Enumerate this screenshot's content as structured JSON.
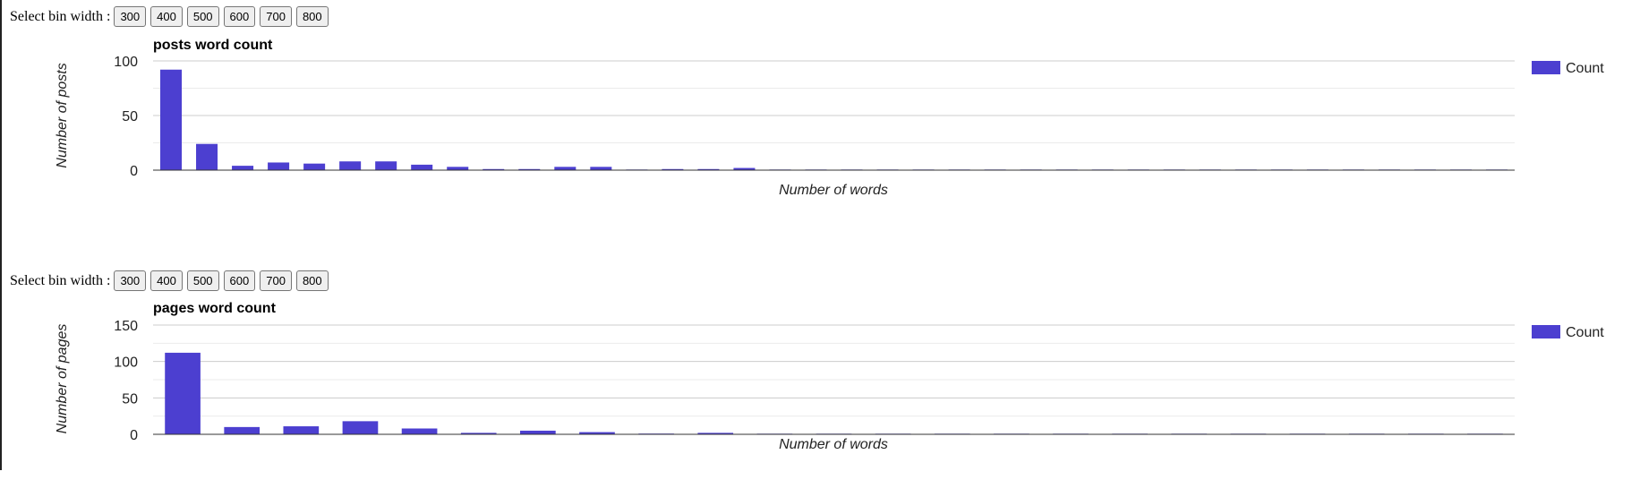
{
  "selector_label": "Select bin width :",
  "bin_widths": [
    "300",
    "400",
    "500",
    "600",
    "700",
    "800"
  ],
  "chart_data": [
    {
      "type": "bar",
      "title": "posts word count",
      "xlabel": "Number of words",
      "ylabel": "Number of posts",
      "ylim": [
        0,
        100
      ],
      "yticks": [
        0,
        50,
        100
      ],
      "series": [
        {
          "name": "Count",
          "values": [
            92,
            24,
            4,
            7,
            6,
            8,
            8,
            5,
            3,
            1,
            1,
            3,
            3,
            0,
            1,
            1,
            2,
            0,
            0,
            0,
            0,
            0,
            0,
            0,
            0,
            0,
            0,
            0,
            0,
            0,
            0,
            0,
            0,
            0,
            0,
            0,
            0,
            0
          ]
        }
      ],
      "legend": "right",
      "color": "#4c3fd0"
    },
    {
      "type": "bar",
      "title": "pages word count",
      "xlabel": "Number of words",
      "ylabel": "Number of pages",
      "ylim": [
        0,
        150
      ],
      "yticks": [
        0,
        50,
        100,
        150
      ],
      "series": [
        {
          "name": "Count",
          "values": [
            112,
            10,
            11,
            18,
            8,
            2,
            5,
            3,
            1,
            2,
            0,
            0,
            0,
            0,
            0,
            0,
            0,
            0,
            0,
            0,
            0,
            0,
            0
          ]
        }
      ],
      "legend": "right",
      "color": "#4c3fd0"
    }
  ]
}
